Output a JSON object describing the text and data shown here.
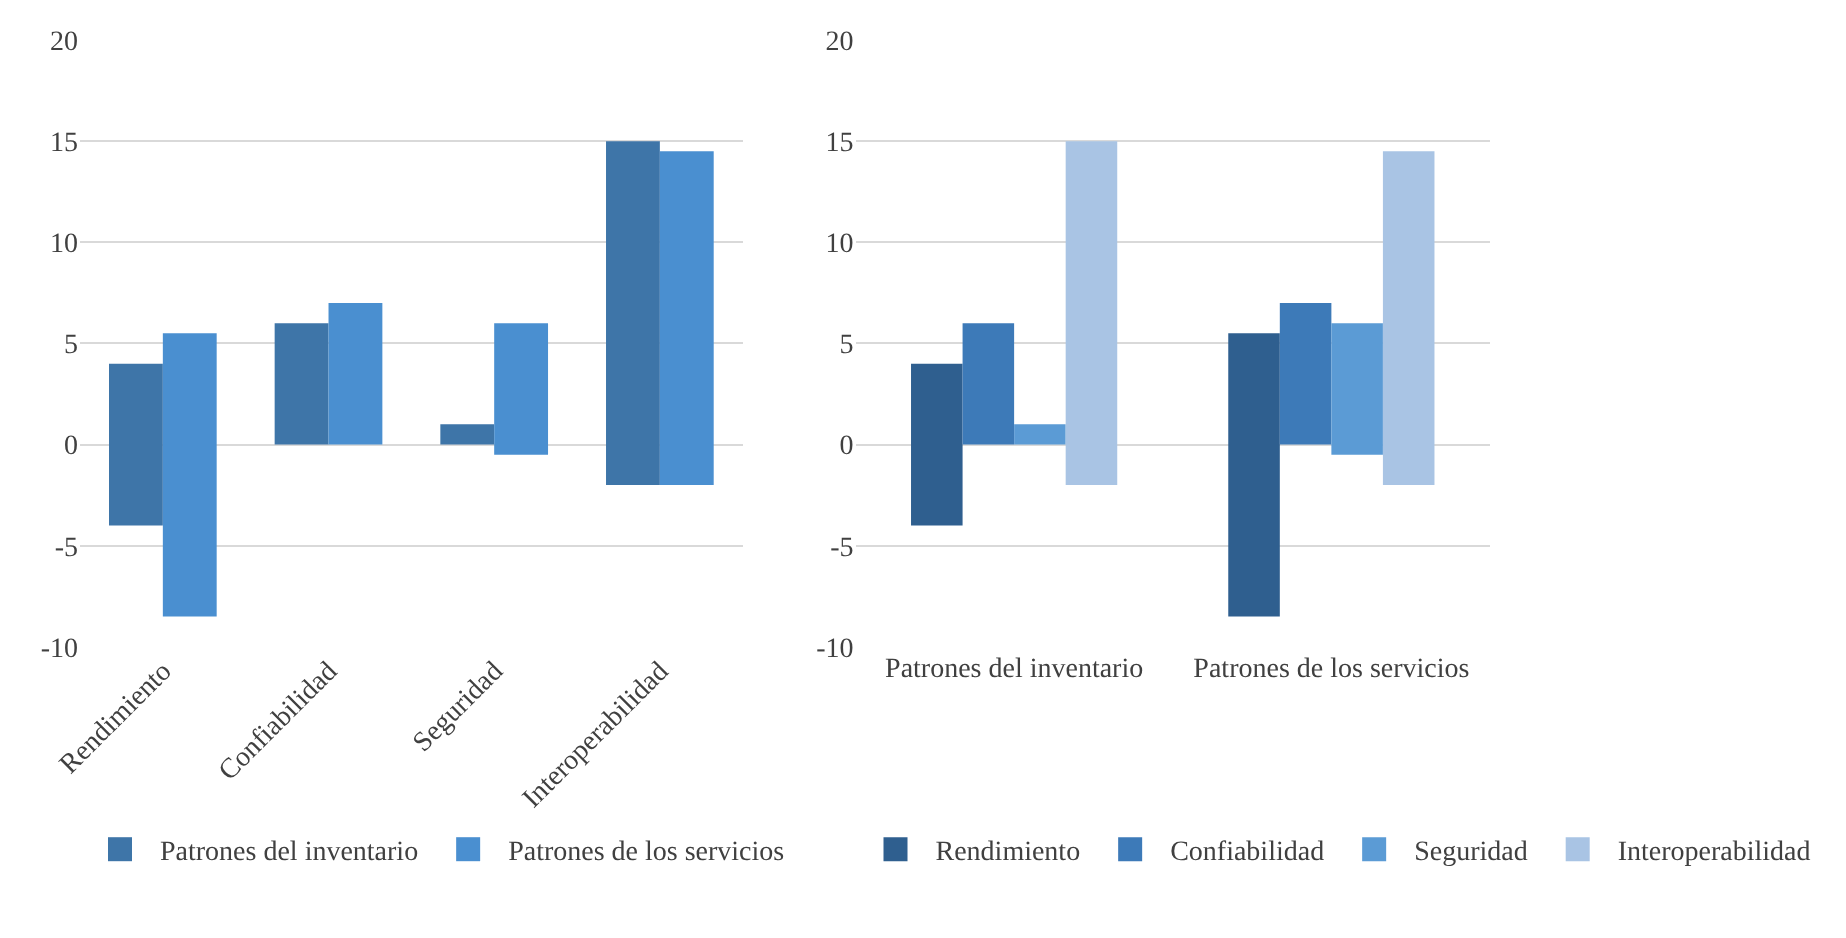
{
  "chart_data": [
    {
      "type": "bar",
      "categories": [
        "Rendimiento",
        "Confiabilidad",
        "Seguridad",
        "Interoperabilidad"
      ],
      "series": [
        {
          "name": "Patrones del inventario",
          "color": "#3e75a8",
          "base": [
            -4,
            0,
            0,
            -2
          ],
          "values": [
            8,
            6,
            1,
            17
          ]
        },
        {
          "name": "Patrones de los servicios",
          "color": "#4a8fd0",
          "base": [
            -8.5,
            0,
            -0.5,
            -2
          ],
          "values": [
            14,
            7,
            6.5,
            16.5
          ]
        }
      ],
      "ylim": [
        -10,
        20
      ],
      "yticks": [
        -10,
        -5,
        0,
        5,
        10,
        15,
        20
      ],
      "grid": "y",
      "legend": "bottom"
    },
    {
      "type": "bar",
      "categories": [
        "Patrones del inventario",
        "Patrones de los servicios"
      ],
      "series": [
        {
          "name": "Rendimiento",
          "color": "#2f5f8f",
          "base": [
            -4,
            -8.5
          ],
          "values": [
            8,
            14
          ]
        },
        {
          "name": "Confiabilidad",
          "color": "#3d7ab8",
          "base": [
            0,
            0
          ],
          "values": [
            6,
            7
          ]
        },
        {
          "name": "Seguridad",
          "color": "#5b9bd5",
          "base": [
            0,
            -0.5
          ],
          "values": [
            1,
            6.5
          ]
        },
        {
          "name": "Interoperabilidad",
          "color": "#a9c4e4",
          "base": [
            -2,
            -2
          ],
          "values": [
            17,
            16.5
          ]
        }
      ],
      "ylim": [
        -10,
        20
      ],
      "yticks": [
        -10,
        -5,
        0,
        5,
        10,
        15,
        20
      ],
      "grid": "y",
      "legend": "bottom"
    }
  ]
}
